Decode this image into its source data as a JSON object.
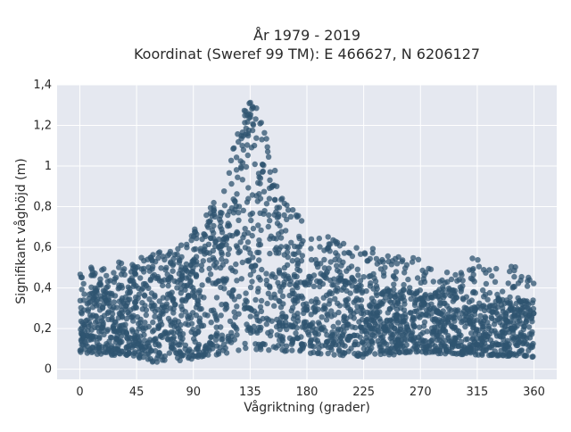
{
  "chart_data": {
    "type": "scatter",
    "title_lines": [
      "År 1979 - 2019",
      "Koordinat (Sweref 99 TM): E 466627, N 6206127"
    ],
    "xlabel": "Vågriktning (grader)",
    "ylabel": "Signifikant våghöjd (m)",
    "xlim": [
      -18,
      378
    ],
    "ylim": [
      -0.05,
      1.4
    ],
    "x_ticks": [
      0,
      45,
      90,
      135,
      180,
      225,
      270,
      315,
      360
    ],
    "x_tick_labels": [
      "0",
      "45",
      "90",
      "135",
      "180",
      "225",
      "270",
      "315",
      "360"
    ],
    "y_ticks": [
      0,
      0.2,
      0.4,
      0.6,
      0.8,
      1,
      1.2,
      1.4
    ],
    "y_tick_labels": [
      "0",
      "0,2",
      "0,4",
      "0,6",
      "0,8",
      "1",
      "1,2",
      "1,4"
    ],
    "grid": true,
    "marker_color": "#2f5470",
    "background_color": "#e5e8f0",
    "series": [
      {
        "description_points_upper_envelope": [
          [
            0,
            0.5
          ],
          [
            10,
            0.52
          ],
          [
            20,
            0.52
          ],
          [
            30,
            0.53
          ],
          [
            40,
            0.55
          ],
          [
            50,
            0.55
          ],
          [
            60,
            0.58
          ],
          [
            70,
            0.6
          ],
          [
            80,
            0.62
          ],
          [
            90,
            0.68
          ],
          [
            100,
            0.76
          ],
          [
            110,
            0.86
          ],
          [
            120,
            1.05
          ],
          [
            125,
            1.2
          ],
          [
            130,
            1.32
          ],
          [
            135,
            1.33
          ],
          [
            140,
            1.31
          ],
          [
            145,
            1.25
          ],
          [
            150,
            1.1
          ],
          [
            160,
            0.86
          ],
          [
            170,
            0.78
          ],
          [
            180,
            0.72
          ],
          [
            190,
            0.66
          ],
          [
            200,
            0.65
          ],
          [
            210,
            0.62
          ],
          [
            220,
            0.61
          ],
          [
            230,
            0.6
          ],
          [
            240,
            0.58
          ],
          [
            250,
            0.56
          ],
          [
            260,
            0.55
          ],
          [
            270,
            0.58
          ],
          [
            280,
            0.5
          ],
          [
            290,
            0.48
          ],
          [
            300,
            0.46
          ],
          [
            310,
            0.57
          ],
          [
            320,
            0.52
          ],
          [
            330,
            0.5
          ],
          [
            340,
            0.52
          ],
          [
            350,
            0.5
          ],
          [
            360,
            0.44
          ]
        ],
        "description_points_lower_envelope": [
          [
            0,
            0.08
          ],
          [
            45,
            0.06
          ],
          [
            60,
            0.03
          ],
          [
            70,
            0.03
          ],
          [
            90,
            0.05
          ],
          [
            135,
            0.1
          ],
          [
            180,
            0.08
          ],
          [
            225,
            0.06
          ],
          [
            270,
            0.08
          ],
          [
            315,
            0.07
          ],
          [
            360,
            0.06
          ]
        ],
        "description_points_dense_upper": [
          [
            0,
            0.4
          ],
          [
            30,
            0.4
          ],
          [
            60,
            0.45
          ],
          [
            90,
            0.55
          ],
          [
            110,
            0.7
          ],
          [
            125,
            1.05
          ],
          [
            135,
            1.25
          ],
          [
            145,
            1.05
          ],
          [
            160,
            0.7
          ],
          [
            180,
            0.55
          ],
          [
            225,
            0.42
          ],
          [
            270,
            0.38
          ],
          [
            315,
            0.36
          ],
          [
            360,
            0.34
          ]
        ]
      }
    ]
  }
}
